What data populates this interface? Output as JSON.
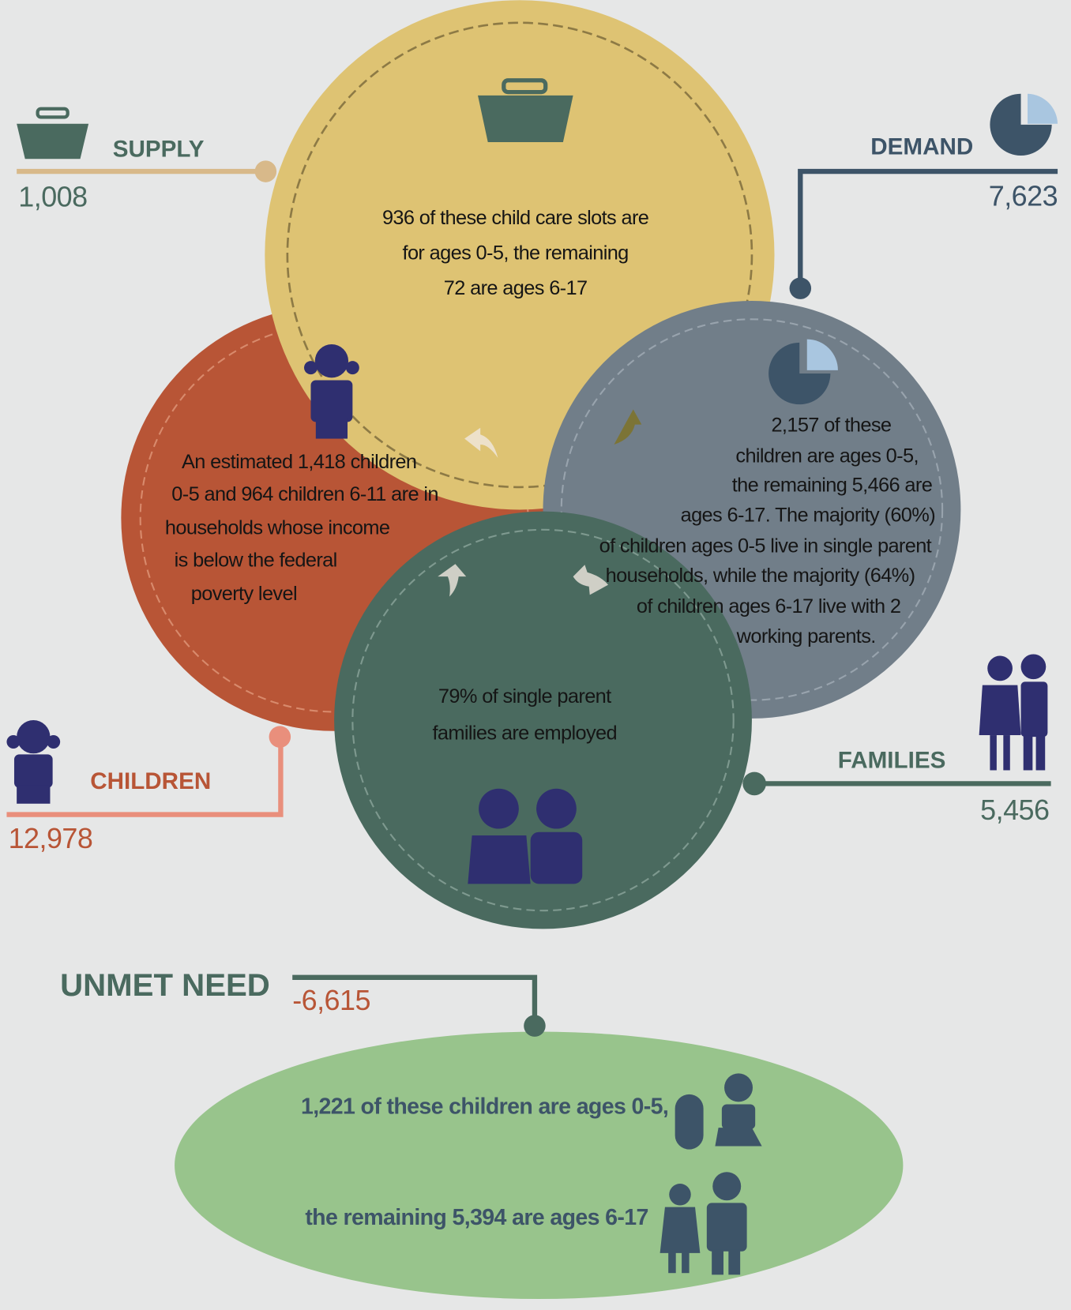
{
  "supply": {
    "label": "SUPPLY",
    "value": "1,008",
    "text": [
      "936 of these child care slots are",
      "for ages 0-5, the remaining",
      "72 are ages 6-17"
    ]
  },
  "demand": {
    "label": "DEMAND",
    "value": "7,623",
    "text": [
      "2,157 of these",
      "children are ages 0-5,",
      "the remaining 5,466 are",
      "ages 6-17.  The majority (60%)",
      "of children ages 0-5 live in single parent",
      "households, while the majority (64%)",
      "of children ages 6-17 live with 2",
      "working parents."
    ]
  },
  "children": {
    "label": "CHILDREN",
    "value": "12,978",
    "text": [
      "An estimated 1,418 children",
      "0-5 and 964 children 6-11 are in",
      "households whose income",
      "is below the federal",
      "poverty level"
    ]
  },
  "families": {
    "label": "FAMILIES",
    "value": "5,456",
    "text": [
      "79% of single parent",
      "families are employed"
    ]
  },
  "unmet_need": {
    "label": "UNMET NEED",
    "value": "-6,615",
    "text": [
      "1,221 of these children are ages 0-5,",
      "the remaining 5,394 are ages 6-17"
    ]
  }
}
